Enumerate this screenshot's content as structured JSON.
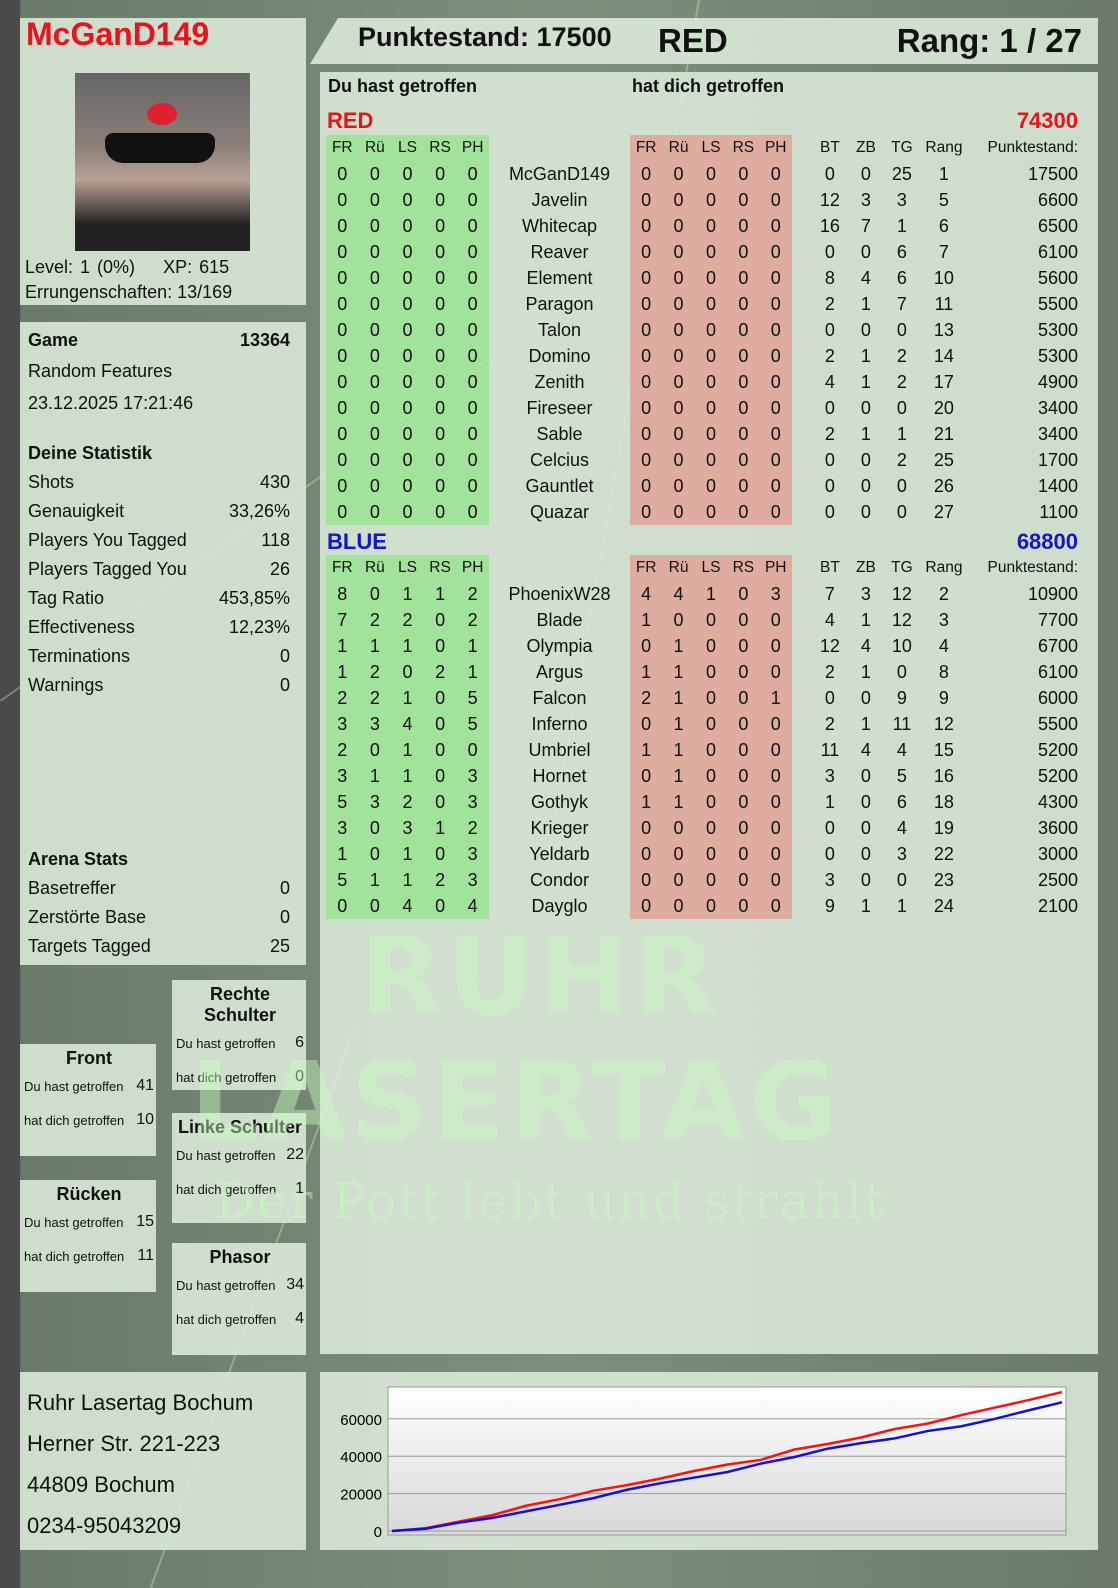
{
  "player": {
    "name": "McGanD149",
    "level": "Level: 1 (0%)",
    "xp": "XP: 615",
    "achievements": "Errungenschaften: 13/169"
  },
  "header": {
    "score": "Punktestand: 17500",
    "team": "RED",
    "rank": "Rang: 1 / 27"
  },
  "game": {
    "label": "Game",
    "id": "13364",
    "mode": "Random Features",
    "datetime": "23.12.2025 17:21:46"
  },
  "stats": {
    "title": "Deine Statistik",
    "items": [
      {
        "label": "Shots",
        "value": "430"
      },
      {
        "label": "Genauigkeit",
        "value": "33,26%"
      },
      {
        "label": "Players You Tagged",
        "value": "118"
      },
      {
        "label": "Players Tagged You",
        "value": "26"
      },
      {
        "label": "Tag Ratio",
        "value": "453,85%"
      },
      {
        "label": "Effectiveness",
        "value": "12,23%"
      },
      {
        "label": "Terminations",
        "value": "0"
      },
      {
        "label": "Warnings",
        "value": "0"
      }
    ]
  },
  "arena": {
    "title": "Arena Stats",
    "items": [
      {
        "label": "Basetreffer",
        "value": "0"
      },
      {
        "label": "Zerstörte Base",
        "value": "0"
      },
      {
        "label": "Targets Tagged",
        "value": "25"
      }
    ]
  },
  "hitzones": [
    {
      "title": "Front",
      "you_hit_label": "Du hast getroffen",
      "you_hit": "41",
      "hit_you_label": "hat dich getroffen",
      "hit_you": "10"
    },
    {
      "title": "Rechte Schulter",
      "you_hit_label": "Du hast getroffen",
      "you_hit": "6",
      "hit_you_label": "hat dich getroffen",
      "hit_you": "0"
    },
    {
      "title": "Linke Schulter",
      "you_hit_label": "Du hast getroffen",
      "you_hit": "22",
      "hit_you_label": "hat dich getroffen",
      "hit_you": "1"
    },
    {
      "title": "Rücken",
      "you_hit_label": "Du hast getroffen",
      "you_hit": "15",
      "hit_you_label": "hat dich getroffen",
      "hit_you": "11"
    },
    {
      "title": "Phasor",
      "you_hit_label": "Du hast getroffen",
      "you_hit": "34",
      "hit_you_label": "hat dich getroffen",
      "hit_you": "4"
    }
  ],
  "arena_info": {
    "name": "Ruhr Lasertag Bochum",
    "street": "Herner Str. 221-223",
    "city": "44809 Bochum",
    "phone": "0234-95043209"
  },
  "watermark": {
    "line1": "RUHR",
    "line2": "LASERTAG",
    "slogan": "Der Pott lebt und strahlt"
  },
  "table": {
    "you_hit": "Du hast getroffen",
    "hit_you": "hat dich getroffen",
    "columns": [
      "FR",
      "Rü",
      "LS",
      "RS",
      "PH",
      "",
      "FR",
      "Rü",
      "LS",
      "RS",
      "PH",
      "",
      "BT",
      "ZB",
      "TG",
      "Rang",
      "Punktestand:"
    ],
    "teams": [
      {
        "name": "RED",
        "score": "74300",
        "color": "#e8141c",
        "players": [
          [
            "0",
            "0",
            "0",
            "0",
            "0",
            "McGanD149",
            "0",
            "0",
            "0",
            "0",
            "0",
            "0",
            "0",
            "25",
            "1",
            "17500"
          ],
          [
            "0",
            "0",
            "0",
            "0",
            "0",
            "Javelin",
            "0",
            "0",
            "0",
            "0",
            "0",
            "12",
            "3",
            "3",
            "5",
            "6600"
          ],
          [
            "0",
            "0",
            "0",
            "0",
            "0",
            "Whitecap",
            "0",
            "0",
            "0",
            "0",
            "0",
            "16",
            "7",
            "1",
            "6",
            "6500"
          ],
          [
            "0",
            "0",
            "0",
            "0",
            "0",
            "Reaver",
            "0",
            "0",
            "0",
            "0",
            "0",
            "0",
            "0",
            "6",
            "7",
            "6100"
          ],
          [
            "0",
            "0",
            "0",
            "0",
            "0",
            "Element",
            "0",
            "0",
            "0",
            "0",
            "0",
            "8",
            "4",
            "6",
            "10",
            "5600"
          ],
          [
            "0",
            "0",
            "0",
            "0",
            "0",
            "Paragon",
            "0",
            "0",
            "0",
            "0",
            "0",
            "2",
            "1",
            "7",
            "11",
            "5500"
          ],
          [
            "0",
            "0",
            "0",
            "0",
            "0",
            "Talon",
            "0",
            "0",
            "0",
            "0",
            "0",
            "0",
            "0",
            "0",
            "13",
            "5300"
          ],
          [
            "0",
            "0",
            "0",
            "0",
            "0",
            "Domino",
            "0",
            "0",
            "0",
            "0",
            "0",
            "2",
            "1",
            "2",
            "14",
            "5300"
          ],
          [
            "0",
            "0",
            "0",
            "0",
            "0",
            "Zenith",
            "0",
            "0",
            "0",
            "0",
            "0",
            "4",
            "1",
            "2",
            "17",
            "4900"
          ],
          [
            "0",
            "0",
            "0",
            "0",
            "0",
            "Fireseer",
            "0",
            "0",
            "0",
            "0",
            "0",
            "0",
            "0",
            "0",
            "20",
            "3400"
          ],
          [
            "0",
            "0",
            "0",
            "0",
            "0",
            "Sable",
            "0",
            "0",
            "0",
            "0",
            "0",
            "2",
            "1",
            "1",
            "21",
            "3400"
          ],
          [
            "0",
            "0",
            "0",
            "0",
            "0",
            "Celcius",
            "0",
            "0",
            "0",
            "0",
            "0",
            "0",
            "0",
            "2",
            "25",
            "1700"
          ],
          [
            "0",
            "0",
            "0",
            "0",
            "0",
            "Gauntlet",
            "0",
            "0",
            "0",
            "0",
            "0",
            "0",
            "0",
            "0",
            "26",
            "1400"
          ],
          [
            "0",
            "0",
            "0",
            "0",
            "0",
            "Quazar",
            "0",
            "0",
            "0",
            "0",
            "0",
            "0",
            "0",
            "0",
            "27",
            "1100"
          ]
        ]
      },
      {
        "name": "BLUE",
        "score": "68800",
        "color": "#1414d0",
        "players": [
          [
            "8",
            "0",
            "1",
            "1",
            "2",
            "PhoenixW28",
            "4",
            "4",
            "1",
            "0",
            "3",
            "7",
            "3",
            "12",
            "2",
            "10900"
          ],
          [
            "7",
            "2",
            "2",
            "0",
            "2",
            "Blade",
            "1",
            "0",
            "0",
            "0",
            "0",
            "4",
            "1",
            "12",
            "3",
            "7700"
          ],
          [
            "1",
            "1",
            "1",
            "0",
            "1",
            "Olympia",
            "0",
            "1",
            "0",
            "0",
            "0",
            "12",
            "4",
            "10",
            "4",
            "6700"
          ],
          [
            "1",
            "2",
            "0",
            "2",
            "1",
            "Argus",
            "1",
            "1",
            "0",
            "0",
            "0",
            "2",
            "1",
            "0",
            "8",
            "6100"
          ],
          [
            "2",
            "2",
            "1",
            "0",
            "5",
            "Falcon",
            "2",
            "1",
            "0",
            "0",
            "1",
            "0",
            "0",
            "9",
            "9",
            "6000"
          ],
          [
            "3",
            "3",
            "4",
            "0",
            "5",
            "Inferno",
            "0",
            "1",
            "0",
            "0",
            "0",
            "2",
            "1",
            "11",
            "12",
            "5500"
          ],
          [
            "2",
            "0",
            "1",
            "0",
            "0",
            "Umbriel",
            "1",
            "1",
            "0",
            "0",
            "0",
            "11",
            "4",
            "4",
            "15",
            "5200"
          ],
          [
            "3",
            "1",
            "1",
            "0",
            "3",
            "Hornet",
            "0",
            "1",
            "0",
            "0",
            "0",
            "3",
            "0",
            "5",
            "16",
            "5200"
          ],
          [
            "5",
            "3",
            "2",
            "0",
            "3",
            "Gothyk",
            "1",
            "1",
            "0",
            "0",
            "0",
            "1",
            "0",
            "6",
            "18",
            "4300"
          ],
          [
            "3",
            "0",
            "3",
            "1",
            "2",
            "Krieger",
            "0",
            "0",
            "0",
            "0",
            "0",
            "0",
            "0",
            "4",
            "19",
            "3600"
          ],
          [
            "1",
            "0",
            "1",
            "0",
            "3",
            "Yeldarb",
            "0",
            "0",
            "0",
            "0",
            "0",
            "0",
            "0",
            "3",
            "22",
            "3000"
          ],
          [
            "5",
            "1",
            "1",
            "2",
            "3",
            "Condor",
            "0",
            "0",
            "0",
            "0",
            "0",
            "3",
            "0",
            "0",
            "23",
            "2500"
          ],
          [
            "0",
            "0",
            "4",
            "0",
            "4",
            "Dayglo",
            "0",
            "0",
            "0",
            "0",
            "0",
            "9",
            "1",
            "1",
            "24",
            "2100"
          ]
        ]
      }
    ]
  },
  "chart_data": {
    "type": "line",
    "title": "",
    "xlabel": "",
    "ylabel": "",
    "ylim": [
      0,
      77000
    ],
    "yticks": [
      "0",
      "20000",
      "40000",
      "60000"
    ],
    "grid": true,
    "legend": "none",
    "series": [
      {
        "color": "#ff1010",
        "values": [
          0,
          1500,
          5000,
          8500,
          13500,
          17000,
          21500,
          24500,
          28000,
          32000,
          35500,
          38000,
          43500,
          46500,
          50000,
          54500,
          57500,
          62000,
          66000,
          70000,
          74300
        ]
      },
      {
        "color": "#1010e0",
        "values": [
          0,
          1200,
          4500,
          7000,
          10500,
          14000,
          17500,
          22000,
          25500,
          28500,
          31500,
          36000,
          39500,
          44000,
          47000,
          49500,
          53500,
          56000,
          60000,
          64500,
          68800
        ]
      }
    ]
  }
}
